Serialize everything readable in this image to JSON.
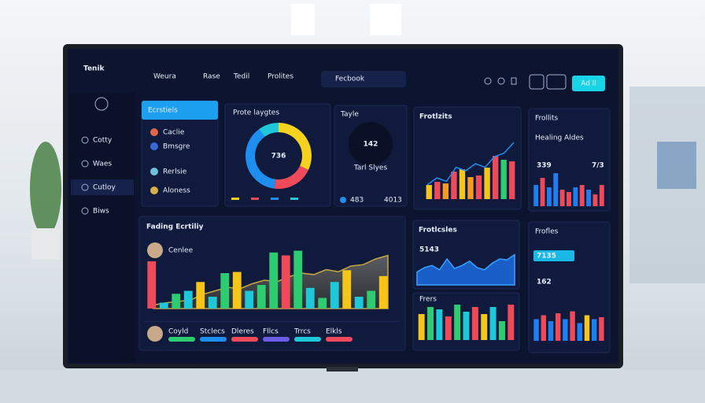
{
  "header": {
    "logo": "Tenik",
    "nav": [
      "Weura",
      "Rase",
      "Tedil",
      "Prolites"
    ],
    "search": "Fecbook",
    "button": "Ad ll"
  },
  "sidebar": {
    "items": [
      "Cotty",
      "Waes",
      "Cutloy",
      "Biws"
    ]
  },
  "panels": {
    "list": {
      "title": "Ecrstiels",
      "items": [
        "Caclie",
        "Bmsgre",
        "Rerlsie",
        "Aloness"
      ]
    },
    "donut": {
      "title": "Prote laygtes",
      "center": "736",
      "values": [
        32,
        20,
        38,
        10
      ],
      "colors": [
        "#f5d21d",
        "#ef4a5a",
        "#1e8ff0",
        "#1ec8d8"
      ]
    },
    "kpi": {
      "title": "Tayle",
      "value": "142",
      "label": "Tarl Slyes",
      "foot": [
        "483",
        "4013"
      ]
    },
    "combo": {
      "title": "Frotlzits",
      "bars": {
        "values": [
          18,
          22,
          20,
          35,
          38,
          28,
          30,
          40,
          55,
          50,
          48
        ],
        "colors": [
          "#f5c518",
          "#ef4a5a",
          "#f59a23",
          "#ef4a5a",
          "#f5c518",
          "#f59a23",
          "#ef4a5a",
          "#f5c518",
          "#ef4a5a",
          "#2ecc71",
          "#ef4a5a"
        ]
      },
      "line": [
        20,
        30,
        25,
        45,
        40,
        50,
        45,
        60,
        65,
        80
      ]
    },
    "side1": {
      "title": "Frollits",
      "subtitle": "Healing Aldes",
      "stats": [
        "339",
        "7/3"
      ],
      "bars": {
        "values": [
          45,
          60,
          40,
          70,
          35,
          30,
          40,
          45,
          35,
          25,
          45
        ],
        "colors": [
          "#1e7ff0",
          "#ef4a5a",
          "#1e7ff0",
          "#1e7ff0",
          "#ef4a5a",
          "#ef4a5a",
          "#1e7ff0",
          "#ef4a5a",
          "#1e7ff0",
          "#ef4a5a",
          "#ef4a5a"
        ]
      }
    },
    "main": {
      "title": "Fading Ecrtiliy",
      "user": "Cenlee",
      "tags": [
        "Coyld",
        "Stclecs",
        "Dleres",
        "Fllcs",
        "Trrcs",
        "Elkls"
      ],
      "tagColors": [
        "#2ecc71",
        "#1e8ff0",
        "#ef4a5a",
        "#6c5ce7",
        "#1ec8d8",
        "#ef4a5a"
      ],
      "bars": {
        "values": [
          80,
          10,
          25,
          30,
          45,
          20,
          60,
          62,
          30,
          40,
          95,
          90,
          98,
          35,
          18,
          45,
          65,
          20,
          30,
          55
        ],
        "colors": [
          "#ef4a5a",
          "#1ec8d8",
          "#2ecc71",
          "#1ec8d8",
          "#f5c518",
          "#1ec8d8",
          "#2ecc71",
          "#f5c518",
          "#1ec8d8",
          "#2ecc71",
          "#2ecc71",
          "#ef4a5a",
          "#2ecc71",
          "#1ec8d8",
          "#2ecc71",
          "#1ec8d8",
          "#f5c518",
          "#1ec8d8",
          "#2ecc71",
          "#f5c518"
        ]
      },
      "area": [
        5,
        8,
        10,
        12,
        20,
        25,
        30,
        28,
        35,
        40,
        38,
        45,
        50,
        48,
        55,
        52,
        60,
        62,
        70,
        75
      ]
    },
    "area2": {
      "title": "Frotlcsles",
      "value": "5143",
      "area": [
        30,
        40,
        45,
        35,
        60,
        38,
        45,
        55,
        40,
        35,
        50,
        60,
        58,
        70
      ]
    },
    "bars2": {
      "title": "Frers",
      "bars": {
        "values": [
          55,
          70,
          65,
          50,
          75,
          60,
          70,
          55,
          70,
          40,
          75
        ],
        "colors": [
          "#f5c518",
          "#2ecc71",
          "#1ec8d8",
          "#ef4a5a",
          "#2ecc71",
          "#1ec8d8",
          "#ef4a5a",
          "#f5c518",
          "#1ec8d8",
          "#2ecc71",
          "#ef4a5a"
        ]
      }
    },
    "side2": {
      "title": "Frofles",
      "stats": [
        "7135",
        "162"
      ],
      "bars": {
        "values": [
          55,
          65,
          50,
          70,
          55,
          75,
          45,
          65,
          55,
          60
        ],
        "colors": [
          "#1e7ff0",
          "#ef4a5a",
          "#1e7ff0",
          "#ef4a5a",
          "#1e7ff0",
          "#ef4a5a",
          "#1e7ff0",
          "#f5c518",
          "#1e7ff0",
          "#ef4a5a"
        ]
      }
    }
  }
}
